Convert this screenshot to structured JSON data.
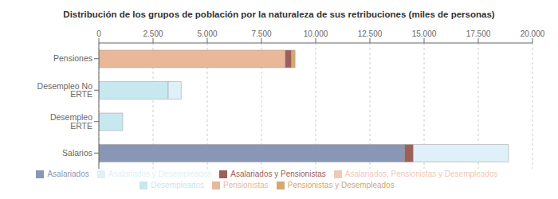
{
  "chart_data": {
    "type": "bar",
    "title": "Distribución de los grupos de población por la naturaleza de sus retribuciones (miles de personas)",
    "orientation": "horizontal",
    "stacked": true,
    "grid": true,
    "legend": "bottom",
    "categories": [
      "Salarios",
      "Desempleo ERTE",
      "Desempleo No ERTE",
      "Pensiones"
    ],
    "series": [
      {
        "name": "Asalariados",
        "color": "#8898b4",
        "values": [
          14100,
          0,
          0,
          0
        ]
      },
      {
        "name": "Pensionistas",
        "color": "#e8b898",
        "values": [
          0,
          0,
          0,
          8600
        ]
      },
      {
        "name": "Desempleados",
        "color": "#c8e8f0",
        "values": [
          0,
          1100,
          3200,
          0
        ]
      },
      {
        "name": "Asalariados y Pensionistas",
        "color": "#9c6058",
        "values": [
          400,
          0,
          0,
          280
        ]
      },
      {
        "name": "Asalariados y Desempleados",
        "color": "#e0f0f8",
        "values": [
          4400,
          0,
          600,
          0
        ]
      },
      {
        "name": "Pensionistas y Desempleados",
        "color": "#d4a870",
        "values": [
          0,
          0,
          0,
          170
        ]
      },
      {
        "name": "Asalariados, Pensionistas y Desempleados",
        "color": "#f0c8b8",
        "values": [
          0,
          0,
          0,
          0
        ]
      }
    ],
    "xlim": [
      0,
      20000
    ],
    "xticks": [
      0,
      {
        "value": 2500,
        "label": "2.500"
      },
      {
        "value": 5000,
        "label": "5.000"
      },
      {
        "value": 7500,
        "label": "7.500"
      },
      {
        "value": 10000,
        "label": "10.000"
      },
      {
        "value": 12500,
        "label": "12.500"
      },
      {
        "value": 15000,
        "label": "15.000"
      },
      {
        "value": 17500,
        "label": "17.500"
      },
      {
        "value": 20000,
        "label": "20.000"
      }
    ]
  }
}
